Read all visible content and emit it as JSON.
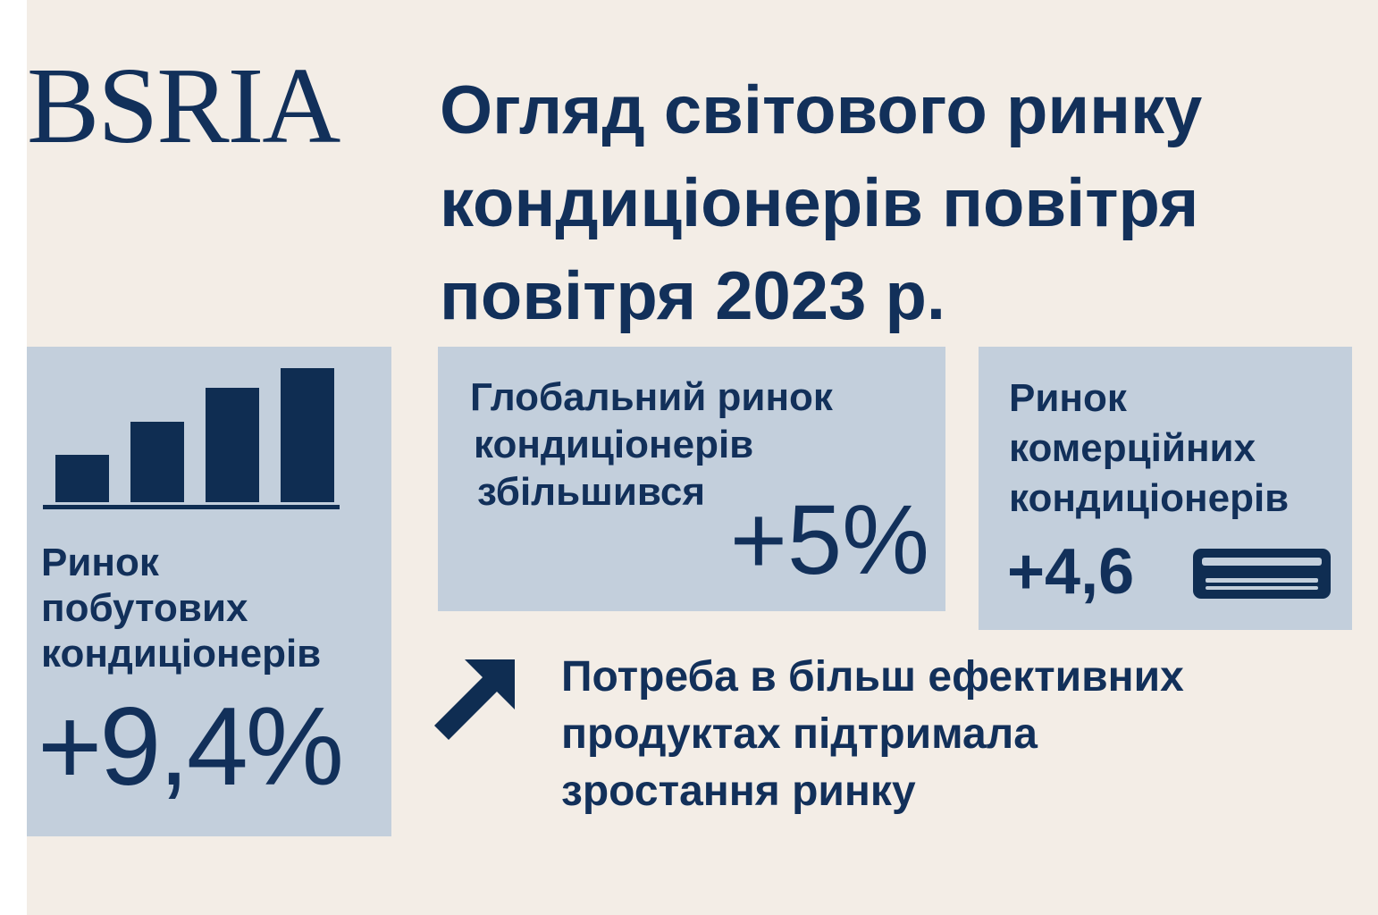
{
  "brand": {
    "logo_text": "BSRIA"
  },
  "header": {
    "title_lines": [
      "Огляд світового ринку",
      "кондиціонерів повітря",
      "повітря 2023 р."
    ]
  },
  "household": {
    "label_lines": [
      "Ринок",
      "побутових",
      "кондиціонерів"
    ],
    "value": "+9,4%",
    "bar_levels": [
      0.35,
      0.6,
      0.85,
      1.0
    ]
  },
  "global": {
    "label_lines": [
      "Глобальний ринок",
      "кондиціонерів",
      "збільшився"
    ],
    "value": "+5%"
  },
  "commercial": {
    "label_lines": [
      "Ринок",
      "комерційних",
      "кондиціонерів"
    ],
    "value": "+4,6"
  },
  "note": {
    "lines": [
      "Потреба в більш ефективних",
      "продуктах підтримала",
      "зростання ринку"
    ]
  },
  "icons": {
    "chart": "bar-chart-icon",
    "air_conditioner": "air-conditioner-icon",
    "arrow": "arrow-up-right-icon"
  },
  "colors": {
    "background": "#f3ede6",
    "panel": "#c3cfdc",
    "navy": "#0f2d52"
  }
}
